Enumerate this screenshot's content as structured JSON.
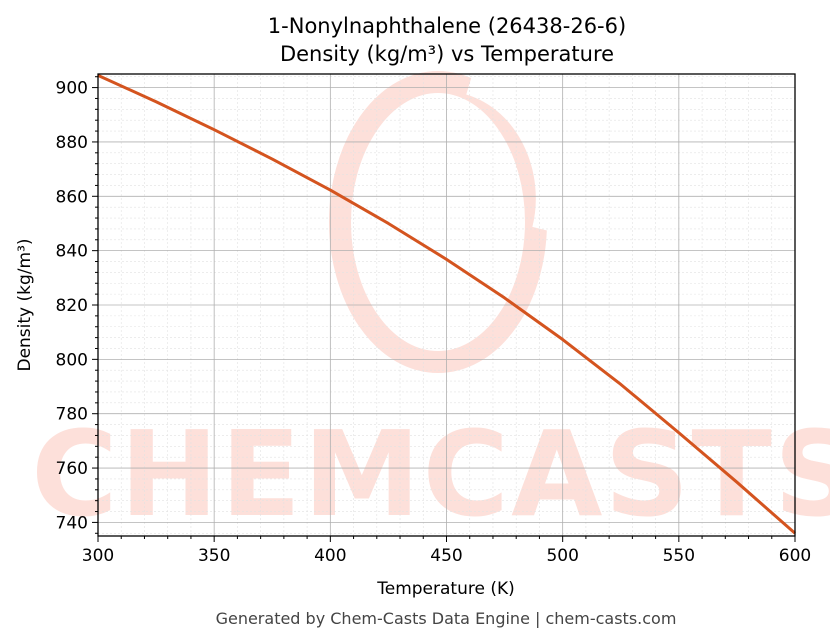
{
  "chart_data": {
    "type": "line",
    "title": "1-Nonylnaphthalene (26438-26-6)",
    "subtitle": "Density (kg/m³) vs Temperature",
    "xlabel": "Temperature (K)",
    "ylabel": "Density (kg/m³)",
    "xlim": [
      300,
      600
    ],
    "ylim": [
      735,
      905
    ],
    "xticks": [
      300,
      350,
      400,
      450,
      500,
      550,
      600
    ],
    "yticks": [
      740,
      760,
      780,
      800,
      820,
      840,
      860,
      880,
      900
    ],
    "grid": true,
    "line_color": "#d4541f",
    "series": [
      {
        "x": [
          300,
          325,
          350,
          375,
          400,
          425,
          450,
          475,
          500,
          525,
          550,
          575,
          600
        ],
        "values": [
          904.5,
          894.8,
          884.5,
          873.7,
          862.3,
          850.0,
          836.8,
          822.6,
          807.3,
          790.8,
          773.0,
          754.8,
          736.0
        ]
      }
    ]
  },
  "watermark": {
    "text": "CHEMCASTS",
    "color": "#fde0da"
  },
  "footer": "Generated by Chem-Casts Data Engine | chem-casts.com"
}
